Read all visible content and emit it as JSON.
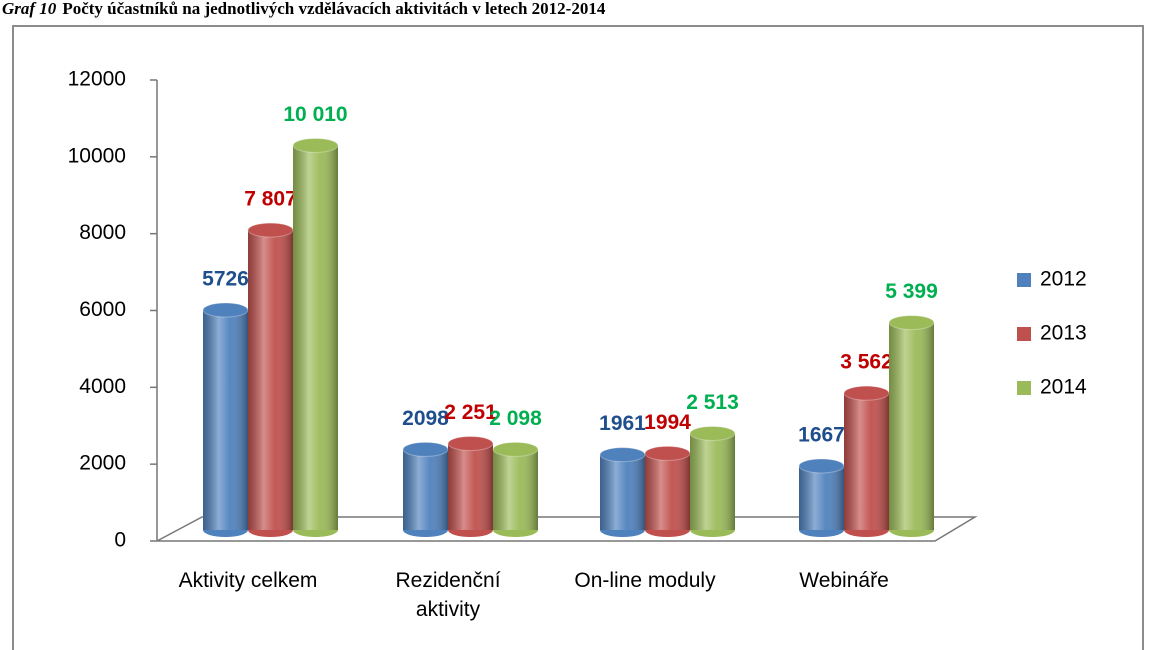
{
  "chart_data": {
    "type": "bar",
    "figure_label": "Graf 10",
    "title": "Počty účastníků na jednotlivých vzdělávacích aktivitách v letech 2012-2014",
    "categories": [
      "Aktivity celkem",
      "Rezidenční aktivity",
      "On-line moduly",
      "Webináře"
    ],
    "series": [
      {
        "name": "2012",
        "color": "#4f81bd",
        "label_color": "#1f4e8c",
        "values": [
          5726,
          2098,
          1961,
          1667
        ],
        "value_labels": [
          "5726",
          "2098",
          "1961",
          "1667"
        ]
      },
      {
        "name": "2013",
        "color": "#c0504d",
        "label_color": "#c00000",
        "values": [
          7807,
          2251,
          1994,
          3562
        ],
        "value_labels": [
          "7 807",
          "2 251",
          "1994",
          "3 562"
        ]
      },
      {
        "name": "2014",
        "color": "#9bbb59",
        "label_color": "#00b050",
        "values": [
          10010,
          2098,
          2513,
          5399
        ],
        "value_labels": [
          "10 010",
          "2 098",
          "2 513",
          "5 399"
        ]
      }
    ],
    "ylim": [
      0,
      12000
    ],
    "yticks": [
      0,
      2000,
      4000,
      6000,
      8000,
      10000,
      12000
    ],
    "legend": "right"
  }
}
